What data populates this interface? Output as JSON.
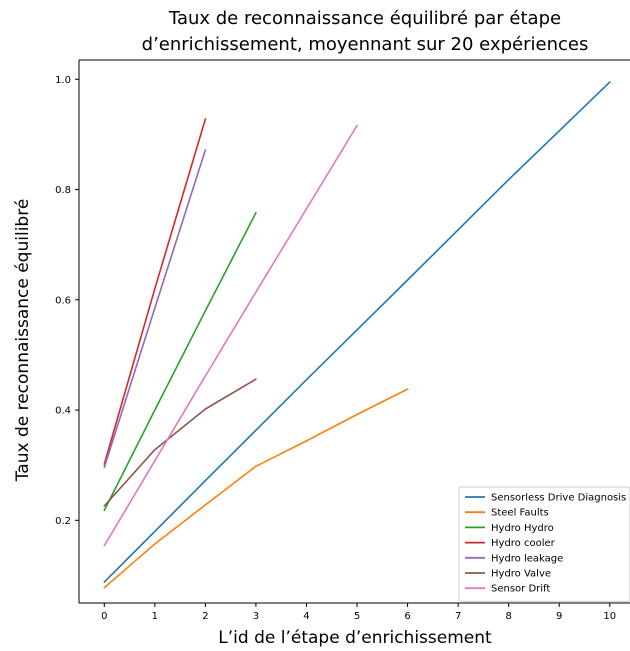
{
  "chart_data": {
    "type": "line",
    "title_line1": "Taux de reconnaissance équilibré par étape",
    "title_line2": "d’enrichissement, moyennant sur 20 expériences",
    "xlabel": "L’id de l’étape d’enrichissement",
    "ylabel": "Taux de reconnaissance équilibré",
    "xlim": [
      -0.5,
      10.4
    ],
    "ylim": [
      0.05,
      1.035
    ],
    "xticks": [
      "0",
      "1",
      "2",
      "3",
      "4",
      "5",
      "6",
      "7",
      "8",
      "9",
      "10"
    ],
    "yticks": [
      "0.2",
      "0.4",
      "0.6",
      "0.8",
      "1.0"
    ],
    "grid": false,
    "legend_position": "bottom-right",
    "series": [
      {
        "name": "Sensorless Drive Diagnosis",
        "color": "#1f77b4",
        "x": [
          0,
          2,
          4,
          6,
          8,
          10
        ],
        "y": [
          0.088,
          0.272,
          0.455,
          0.636,
          0.818,
          0.995
        ]
      },
      {
        "name": "Steel Faults",
        "color": "#ff7f0e",
        "x": [
          0,
          1,
          2,
          3,
          4,
          5,
          6
        ],
        "y": [
          0.078,
          0.157,
          0.228,
          0.298,
          0.344,
          0.392,
          0.438
        ]
      },
      {
        "name": "Hydro Hydro",
        "color": "#2ca02c",
        "x": [
          0,
          1,
          2,
          3
        ],
        "y": [
          0.218,
          0.4,
          0.58,
          0.758
        ]
      },
      {
        "name": "Hydro cooler",
        "color": "#d62728",
        "x": [
          0,
          1,
          2
        ],
        "y": [
          0.302,
          0.62,
          0.928
        ]
      },
      {
        "name": "Hydro leakage",
        "color": "#9467bd",
        "x": [
          0,
          1,
          2
        ],
        "y": [
          0.296,
          0.585,
          0.872
        ]
      },
      {
        "name": "Hydro Valve",
        "color": "#8c564b",
        "x": [
          0,
          1,
          2,
          3
        ],
        "y": [
          0.226,
          0.328,
          0.402,
          0.456
        ]
      },
      {
        "name": "Sensor Drift",
        "color": "#e377c2",
        "x": [
          0,
          1,
          2,
          3,
          4,
          5
        ],
        "y": [
          0.154,
          0.308,
          0.462,
          0.614,
          0.765,
          0.916
        ]
      }
    ]
  }
}
